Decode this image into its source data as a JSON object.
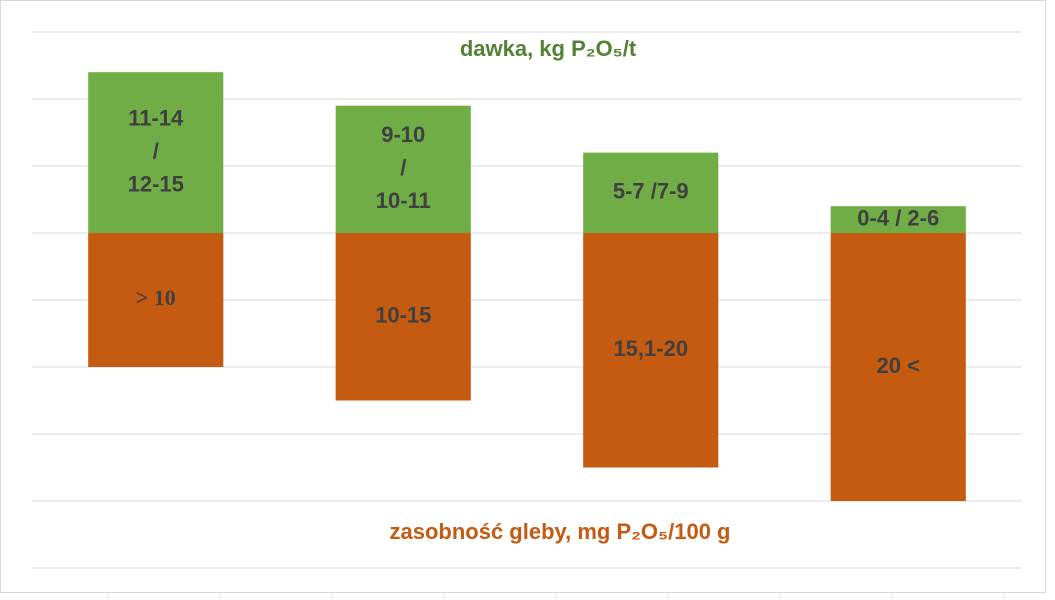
{
  "chart_data": {
    "type": "bar",
    "title": "dawka, kg P₂O₅/t",
    "subtitle": "zasobność gleby, mg P₂O₅/100 g",
    "series": [
      {
        "color": "#70ad47",
        "values": [
          2.4,
          1.9,
          1.2,
          0.4
        ],
        "labels": [
          [
            "11-14",
            "/",
            "12-15"
          ],
          [
            "9-10",
            "/",
            "10-11"
          ],
          [
            "5-7 /7-9"
          ],
          [
            "0-4 / 2-6"
          ]
        ]
      },
      {
        "color": "#c55a11",
        "values": [
          -2,
          -2.5,
          -3.5,
          -4
        ],
        "labels": [
          [
            "> 10"
          ],
          [
            "10-15"
          ],
          [
            "15,1-20"
          ],
          [
            "20 <"
          ]
        ]
      }
    ],
    "ylim": [
      -5,
      3
    ],
    "yticks": [
      -5,
      -4,
      -3,
      -2,
      -1,
      0,
      1,
      2,
      3
    ],
    "grid": true
  }
}
